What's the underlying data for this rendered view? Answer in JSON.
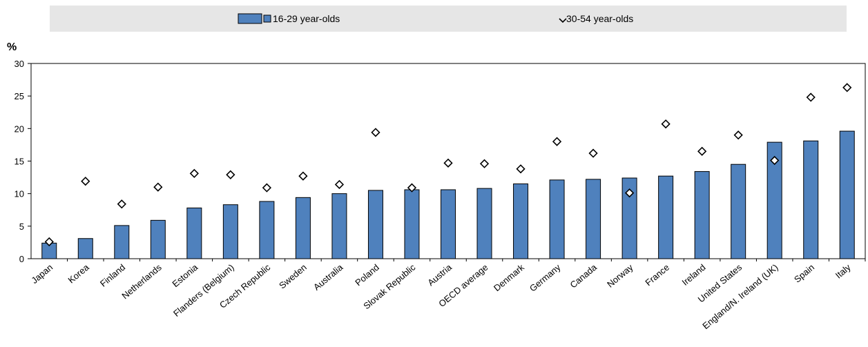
{
  "chart_data": {
    "type": "bar",
    "ylabel": "%",
    "ylim": [
      0,
      30
    ],
    "yticks": [
      0,
      5,
      10,
      15,
      20,
      25,
      30
    ],
    "legend_position": "top",
    "grid": false,
    "categories": [
      "Japan",
      "Korea",
      "Finland",
      "Netherlands",
      "Estonia",
      "Flanders (Belgium)",
      "Czech Republic",
      "Sweden",
      "Australia",
      "Poland",
      "Slovak Republic",
      "Austria",
      "OECD average",
      "Denmark",
      "Germany",
      "Canada",
      "Norway",
      "France",
      "Ireland",
      "United States",
      "England/N. Ireland (UK)",
      "Spain",
      "Italy"
    ],
    "series": [
      {
        "name": "16-29 year-olds",
        "kind": "bar",
        "color": "#4f81bd",
        "values": [
          2.4,
          3.1,
          5.1,
          5.9,
          7.8,
          8.3,
          8.8,
          9.4,
          10.0,
          10.5,
          10.6,
          10.6,
          10.8,
          11.5,
          12.1,
          12.2,
          12.4,
          12.7,
          13.4,
          14.5,
          17.9,
          18.1,
          19.6
        ]
      },
      {
        "name": "30-54 year-olds",
        "kind": "marker",
        "color": "#ffffff",
        "values": [
          2.6,
          11.9,
          8.4,
          11.0,
          13.1,
          12.9,
          10.9,
          12.7,
          11.4,
          19.4,
          10.9,
          14.7,
          14.6,
          13.8,
          18.0,
          16.2,
          10.1,
          20.7,
          16.5,
          19.0,
          15.1,
          24.8,
          26.3
        ]
      }
    ]
  }
}
